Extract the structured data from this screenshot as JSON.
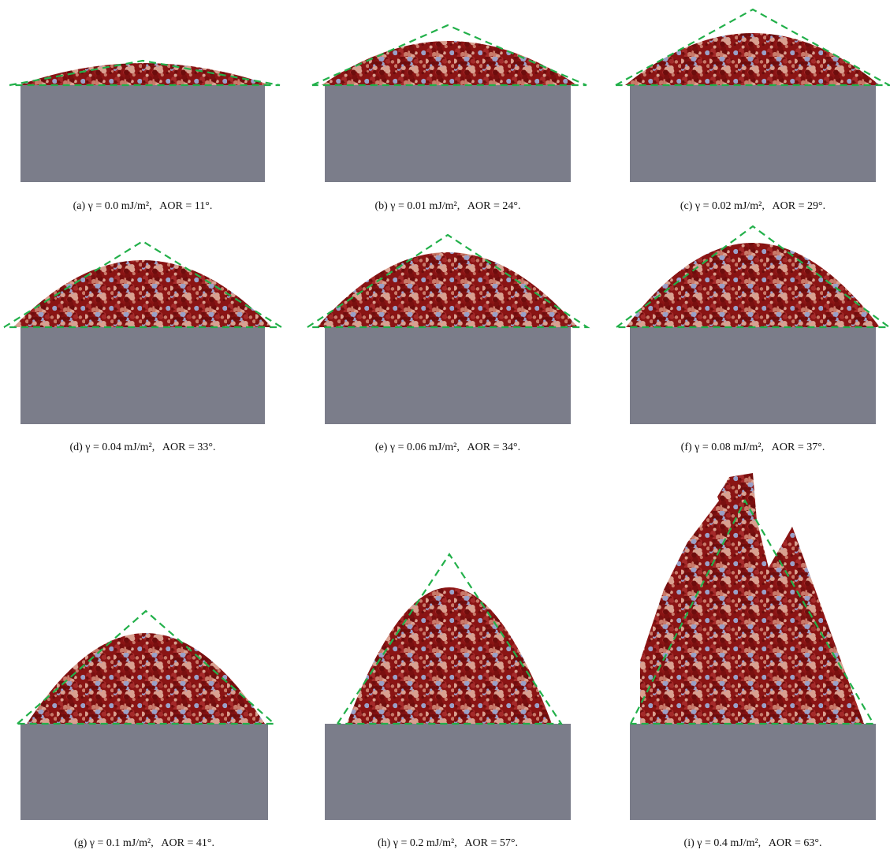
{
  "panels": [
    {
      "caption": "(a) γ = 0.0 mJ/m²,   AOR = 11°."
    },
    {
      "caption": "(b) γ = 0.01 mJ/m²,   AOR = 24°."
    },
    {
      "caption": "(c) γ = 0.02 mJ/m²,   AOR = 29°."
    },
    {
      "caption": "(d) γ = 0.04 mJ/m²,   AOR = 33°."
    },
    {
      "caption": "(e) γ = 0.06 mJ/m²,   AOR = 34°."
    },
    {
      "caption": "(f) γ = 0.08 mJ/m²,   AOR = 37°."
    },
    {
      "caption": "(g) γ = 0.1 mJ/m²,   AOR = 41°."
    },
    {
      "caption": "(h) γ = 0.2 mJ/m²,   AOR = 57°."
    },
    {
      "caption": "(i) γ = 0.4 mJ/m²,   AOR = 63°."
    }
  ]
}
